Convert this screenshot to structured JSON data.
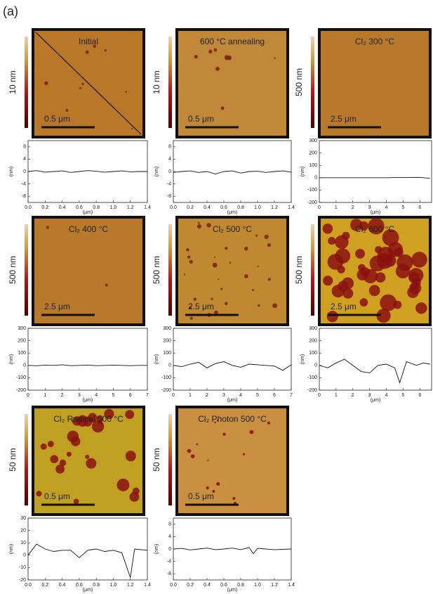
{
  "label": "(a)",
  "images": [
    {
      "title": "Initial",
      "height_scale": "10 nm",
      "scale_bar": "0.5 μm"
    },
    {
      "title": "600 °C annealing",
      "height_scale": "10 nm",
      "scale_bar": "0.5 μm"
    },
    {
      "title": "Cl₂ 300 °C",
      "height_scale": "500 nm",
      "scale_bar": "2.5 μm"
    },
    {
      "title": "Cl₂ 400 °C",
      "height_scale": "500 nm",
      "scale_bar": "2.5 μm"
    },
    {
      "title": "Cl₂ 500 °C",
      "height_scale": "500 nm",
      "scale_bar": "2.5 μm"
    },
    {
      "title": "Cl₂ 600 °C",
      "height_scale": "500 nm",
      "scale_bar": "2.5 μm"
    },
    {
      "title": "Cl₂ Radical 500 °C",
      "height_scale": "50 nm",
      "scale_bar": "0.5 μm"
    },
    {
      "title": "Cl₂ Photon 500 °C",
      "height_scale": "50 nm",
      "scale_bar": "0.5 μm"
    }
  ],
  "chart_data": [
    {
      "type": "line",
      "ylabel": "(nm)",
      "xlabel": "(μm)",
      "x": [
        0,
        0.1,
        0.2,
        0.3,
        0.4,
        0.5,
        0.6,
        0.7,
        0.8,
        0.9,
        1,
        1.1,
        1.2,
        1.3,
        1.4
      ],
      "values": [
        0,
        0.3,
        -0.2,
        0,
        0.2,
        -0.3,
        0,
        0.3,
        0.1,
        -0.2,
        0,
        0.2,
        -0.1,
        0,
        0
      ],
      "xlim": [
        0,
        1.4
      ],
      "ylim": [
        -10,
        10
      ],
      "xticks": [
        {
          "value": 0,
          "label": "0.0"
        },
        0.2,
        0.4,
        0.6,
        0.8,
        {
          "value": 1,
          "label": "1.0"
        },
        1.2,
        1.4
      ],
      "yticks": [
        8,
        4,
        0,
        -4,
        -8
      ]
    },
    {
      "type": "line",
      "ylabel": "(nm)",
      "xlabel": "(μm)",
      "x": [
        0,
        0.1,
        0.2,
        0.3,
        0.4,
        0.5,
        0.6,
        0.7,
        0.8,
        0.9,
        1,
        1.1,
        1.2,
        1.3,
        1.4
      ],
      "values": [
        -0.3,
        0,
        0.2,
        -0.3,
        0,
        -0.8,
        0,
        0.2,
        -0.5,
        0,
        0.1,
        -0.3,
        0,
        0.2,
        -0.2
      ],
      "xlim": [
        0,
        1.4
      ],
      "ylim": [
        -10,
        10
      ],
      "xticks": [
        {
          "value": 0,
          "label": "0.0"
        },
        0.2,
        0.4,
        0.6,
        0.8,
        {
          "value": 1,
          "label": "1.0"
        },
        1.2,
        1.4
      ],
      "yticks": [
        8,
        4,
        0,
        -4,
        -8
      ]
    },
    {
      "type": "line",
      "ylabel": "(nm)",
      "xlabel": "(μm)",
      "x": [
        0,
        1,
        2,
        3,
        4,
        5,
        6,
        6.6
      ],
      "values": [
        0,
        0,
        0,
        0,
        0,
        2,
        3,
        -5
      ],
      "xlim": [
        0,
        6.7
      ],
      "ylim": [
        -200,
        300
      ],
      "xticks": [
        0,
        1,
        2,
        3,
        4,
        5,
        6
      ],
      "yticks": [
        300,
        200,
        100,
        0,
        -100,
        -200
      ]
    },
    {
      "type": "line",
      "ylabel": "(nm)",
      "xlabel": "(μm)",
      "x": [
        0,
        0.5,
        1,
        1.5,
        2,
        2.5,
        3,
        3.5,
        4,
        4.5,
        5,
        5.5,
        6,
        6.5,
        7
      ],
      "values": [
        0,
        -3,
        2,
        0,
        5,
        -2,
        0,
        3,
        -2,
        0,
        2,
        0,
        -2,
        0,
        0
      ],
      "xlim": [
        0,
        7
      ],
      "ylim": [
        -200,
        300
      ],
      "xticks": [
        0,
        1,
        2,
        3,
        4,
        5,
        6,
        7
      ],
      "yticks": [
        300,
        200,
        100,
        0,
        -100,
        -200
      ]
    },
    {
      "type": "line",
      "ylabel": "(nm)",
      "xlabel": "(μm)",
      "x": [
        0,
        0.5,
        1,
        1.5,
        2,
        2.5,
        3,
        3.5,
        4,
        4.5,
        5,
        5.5,
        6,
        6.5,
        7
      ],
      "values": [
        0,
        -10,
        10,
        25,
        -20,
        15,
        30,
        0,
        -15,
        10,
        5,
        0,
        -5,
        -40,
        5
      ],
      "xlim": [
        0,
        7
      ],
      "ylim": [
        -200,
        300
      ],
      "xticks": [
        0,
        1,
        2,
        3,
        4,
        5,
        6,
        7
      ],
      "yticks": [
        300,
        200,
        100,
        0,
        -100,
        -200
      ]
    },
    {
      "type": "line",
      "ylabel": "(nm)",
      "xlabel": "(μm)",
      "x": [
        0,
        0.5,
        1,
        1.5,
        2,
        2.5,
        3,
        3.5,
        4,
        4.5,
        4.8,
        5.2,
        5.8,
        6.2,
        6.6
      ],
      "values": [
        0,
        -20,
        20,
        50,
        0,
        -50,
        -60,
        0,
        10,
        -20,
        -140,
        30,
        0,
        20,
        10
      ],
      "xlim": [
        0,
        6.7
      ],
      "ylim": [
        -200,
        300
      ],
      "xticks": [
        0,
        1,
        2,
        3,
        4,
        5,
        6
      ],
      "yticks": [
        300,
        200,
        100,
        0,
        -100,
        -200
      ]
    },
    {
      "type": "line",
      "ylabel": "(nm)",
      "xlabel": "(μm)",
      "x": [
        0,
        0.1,
        0.2,
        0.3,
        0.4,
        0.5,
        0.6,
        0.7,
        0.8,
        0.9,
        1,
        1.1,
        1.2,
        1.25,
        1.4
      ],
      "values": [
        0,
        9,
        5,
        3,
        4,
        4,
        -2,
        4,
        5,
        3,
        4,
        2,
        -18,
        5,
        4
      ],
      "xlim": [
        0,
        1.4
      ],
      "ylim": [
        -20,
        30
      ],
      "xticks": [
        {
          "value": 0,
          "label": "0.0"
        },
        0.2,
        0.4,
        0.6,
        0.8,
        {
          "value": 1,
          "label": "1.0"
        },
        1.2,
        1.4
      ],
      "yticks": [
        30,
        20,
        10,
        0,
        -10,
        -20
      ]
    },
    {
      "type": "line",
      "ylabel": "(nm)",
      "xlabel": "(μm)",
      "x": [
        0,
        0.1,
        0.2,
        0.3,
        0.4,
        0.5,
        0.6,
        0.7,
        0.8,
        0.9,
        0.95,
        1,
        1.1,
        1.2,
        1.4
      ],
      "values": [
        0,
        0.2,
        -0.3,
        0,
        0.3,
        -0.2,
        0,
        0.3,
        -0.2,
        0.5,
        -1.5,
        0.2,
        0,
        -0.2,
        0
      ],
      "xlim": [
        0,
        1.4
      ],
      "ylim": [
        -10,
        10
      ],
      "xticks": [
        {
          "value": 0,
          "label": "0.0"
        },
        0.2,
        0.4,
        0.6,
        0.8,
        {
          "value": 1,
          "label": "1.0"
        },
        1.2,
        1.4
      ],
      "yticks": [
        8,
        4,
        0,
        -4,
        -8
      ]
    }
  ]
}
